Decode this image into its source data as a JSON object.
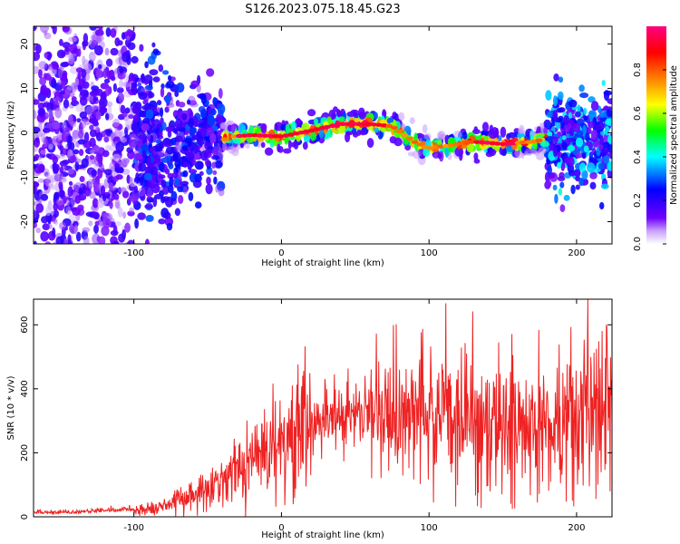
{
  "title": "S126.2023.075.18.45.G23",
  "colors": {
    "snr_line": "#ee2222",
    "background": "#ffffff"
  },
  "chart_data": [
    {
      "type": "heatmap",
      "xlabel": "Height of straight line (km)",
      "ylabel": "Frequency (Hz)",
      "xlim": [
        -168,
        224
      ],
      "ylim": [
        -25,
        24
      ],
      "xticks": [
        "-100",
        "0",
        "100",
        "200"
      ],
      "yticks": [
        "-20",
        "-10",
        "0",
        "10",
        "20"
      ],
      "colorbar": {
        "label": "Normalized spectral amplitude",
        "range": [
          0.0,
          1.0
        ],
        "ticks": [
          "0.0",
          "0.2",
          "0.4",
          "0.6",
          "0.8"
        ],
        "colormap": [
          "#ffffff",
          "#7000ff",
          "#0000ff",
          "#00ffff",
          "#00ff00",
          "#ffff00",
          "#ff8000",
          "#ff0000",
          "#ff0080"
        ]
      },
      "ridge": {
        "x": [
          -75,
          -60,
          -40,
          -20,
          0,
          20,
          40,
          60,
          75,
          90,
          100,
          110,
          130,
          150,
          170,
          185,
          200,
          220
        ],
        "y": [
          -2.5,
          -2,
          -1,
          -0.5,
          -0.8,
          0.5,
          2,
          2,
          1.5,
          -2,
          -3.5,
          -3,
          -2,
          -2.5,
          -2,
          -1,
          -1.5,
          -2
        ]
      }
    },
    {
      "type": "line",
      "xlabel": "Height of straight line (km)",
      "ylabel": "SNR (10 * v/v)",
      "xlim": [
        -168,
        224
      ],
      "ylim": [
        0,
        680
      ],
      "xticks": [
        "-100",
        "0",
        "100",
        "200"
      ],
      "yticks": [
        "0",
        "200",
        "400",
        "600"
      ],
      "envelope": {
        "x": [
          -168,
          -140,
          -120,
          -100,
          -80,
          -60,
          -40,
          -20,
          0,
          20,
          40,
          50,
          60,
          80,
          100,
          120,
          140,
          160,
          180,
          200,
          210,
          224
        ],
        "y": [
          10,
          10,
          15,
          20,
          35,
          70,
          120,
          180,
          240,
          280,
          310,
          320,
          320,
          320,
          320,
          300,
          290,
          280,
          300,
          300,
          320,
          350
        ]
      }
    }
  ]
}
